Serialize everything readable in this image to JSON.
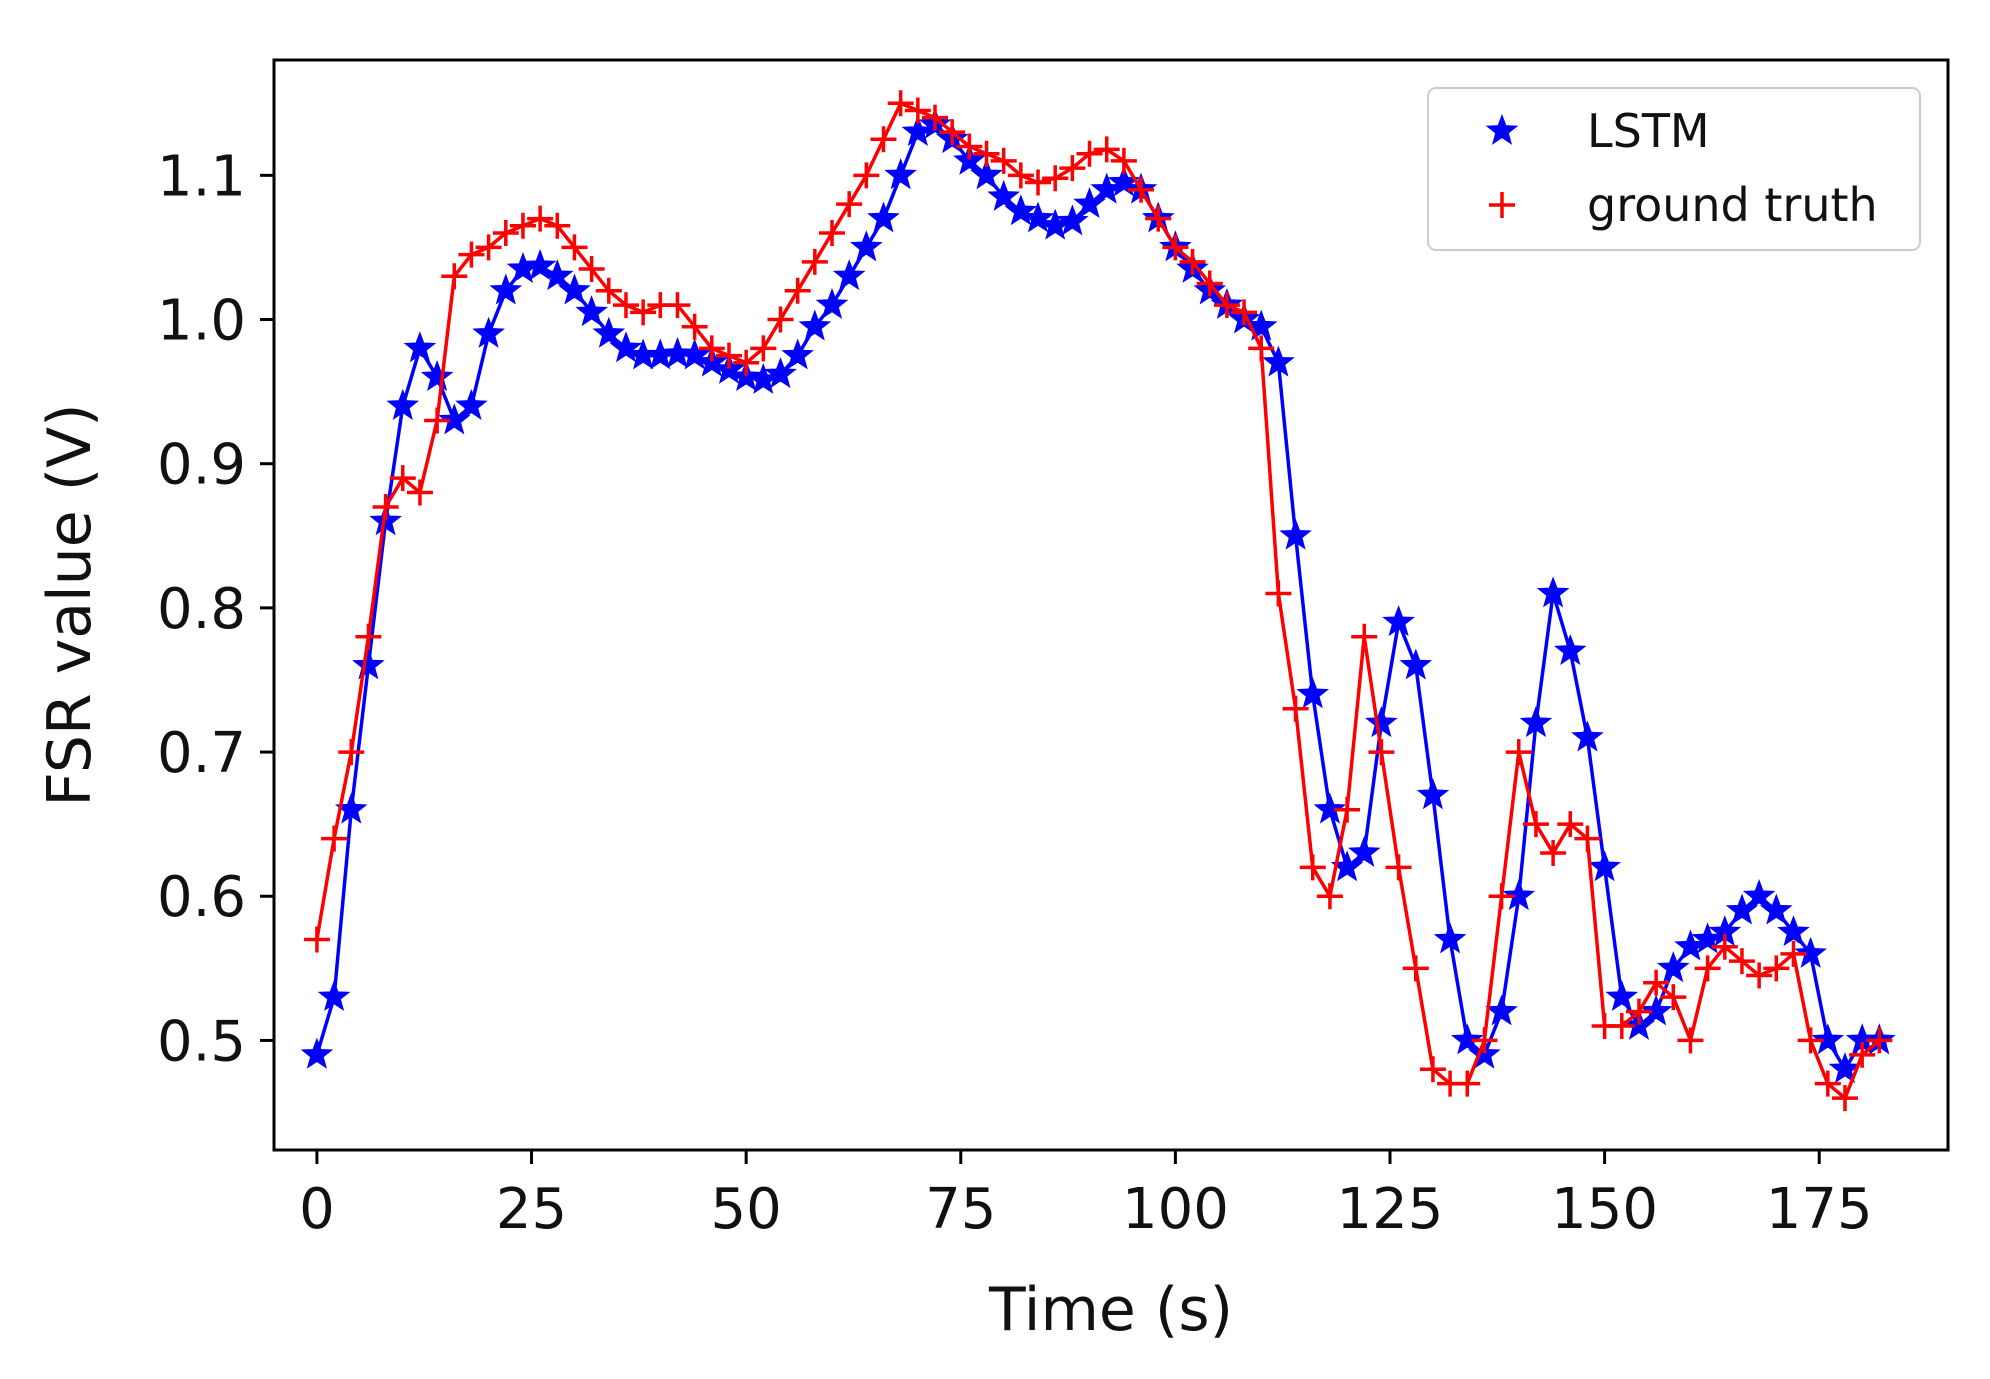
{
  "chart_data": {
    "type": "line",
    "title": "",
    "xlabel": "Time (s)",
    "ylabel": "FSR value (V)",
    "xlim": [
      -5,
      190
    ],
    "ylim": [
      0.424,
      1.18
    ],
    "xticks": [
      0,
      25,
      50,
      75,
      100,
      125,
      150,
      175
    ],
    "xtick_labels": [
      "0",
      "25",
      "50",
      "75",
      "100",
      "125",
      "150",
      "175"
    ],
    "yticks": [
      0.5,
      0.6,
      0.7,
      0.8,
      0.9,
      1.0,
      1.1
    ],
    "ytick_labels": [
      "0.5",
      "0.6",
      "0.7",
      "0.8",
      "0.9",
      "1.0",
      "1.1"
    ],
    "grid": false,
    "legend_position": "top-right",
    "series": [
      {
        "name": "LSTM",
        "color": "#0000ff",
        "marker": "star",
        "x": [
          0,
          2,
          4,
          6,
          8,
          10,
          12,
          14,
          16,
          18,
          20,
          22,
          24,
          26,
          28,
          30,
          32,
          34,
          36,
          38,
          40,
          42,
          44,
          46,
          48,
          50,
          52,
          54,
          56,
          58,
          60,
          62,
          64,
          66,
          68,
          70,
          72,
          74,
          76,
          78,
          80,
          82,
          84,
          86,
          88,
          90,
          92,
          94,
          96,
          98,
          100,
          102,
          104,
          106,
          108,
          110,
          112,
          114,
          116,
          118,
          120,
          122,
          124,
          126,
          128,
          130,
          132,
          134,
          136,
          138,
          140,
          142,
          144,
          146,
          148,
          150,
          152,
          154,
          156,
          158,
          160,
          162,
          164,
          166,
          168,
          170,
          172,
          174,
          176,
          178,
          180,
          182
        ],
        "y": [
          0.49,
          0.53,
          0.66,
          0.76,
          0.86,
          0.94,
          0.98,
          0.96,
          0.93,
          0.94,
          0.99,
          1.02,
          1.035,
          1.037,
          1.03,
          1.02,
          1.005,
          0.99,
          0.98,
          0.975,
          0.975,
          0.976,
          0.975,
          0.97,
          0.965,
          0.96,
          0.958,
          0.962,
          0.975,
          0.995,
          1.01,
          1.03,
          1.05,
          1.07,
          1.1,
          1.13,
          1.135,
          1.125,
          1.11,
          1.1,
          1.085,
          1.075,
          1.07,
          1.065,
          1.068,
          1.08,
          1.09,
          1.095,
          1.09,
          1.07,
          1.05,
          1.035,
          1.02,
          1.01,
          1.0,
          0.995,
          0.97,
          0.85,
          0.74,
          0.66,
          0.62,
          0.63,
          0.72,
          0.79,
          0.76,
          0.67,
          0.57,
          0.5,
          0.49,
          0.52,
          0.6,
          0.72,
          0.81,
          0.77,
          0.71,
          0.62,
          0.53,
          0.51,
          0.52,
          0.55,
          0.565,
          0.57,
          0.575,
          0.59,
          0.6,
          0.59,
          0.575,
          0.56,
          0.5,
          0.48,
          0.5,
          0.5
        ]
      },
      {
        "name": "ground truth",
        "color": "#ff0000",
        "marker": "plus",
        "x": [
          0,
          2,
          4,
          6,
          8,
          10,
          12,
          14,
          16,
          18,
          20,
          22,
          24,
          26,
          28,
          30,
          32,
          34,
          36,
          38,
          40,
          42,
          44,
          46,
          48,
          50,
          52,
          54,
          56,
          58,
          60,
          62,
          64,
          66,
          68,
          70,
          72,
          74,
          76,
          78,
          80,
          82,
          84,
          86,
          88,
          90,
          92,
          94,
          96,
          98,
          100,
          102,
          104,
          106,
          108,
          110,
          112,
          114,
          116,
          118,
          120,
          122,
          124,
          126,
          128,
          130,
          132,
          134,
          136,
          138,
          140,
          142,
          144,
          146,
          148,
          150,
          152,
          154,
          156,
          158,
          160,
          162,
          164,
          166,
          168,
          170,
          172,
          174,
          176,
          178,
          180,
          182
        ],
        "y": [
          0.57,
          0.64,
          0.7,
          0.78,
          0.87,
          0.89,
          0.88,
          0.93,
          1.03,
          1.045,
          1.05,
          1.06,
          1.065,
          1.07,
          1.065,
          1.05,
          1.035,
          1.02,
          1.01,
          1.005,
          1.01,
          1.01,
          0.995,
          0.98,
          0.975,
          0.97,
          0.98,
          1.0,
          1.02,
          1.04,
          1.06,
          1.08,
          1.1,
          1.125,
          1.15,
          1.145,
          1.14,
          1.13,
          1.12,
          1.115,
          1.11,
          1.1,
          1.095,
          1.098,
          1.105,
          1.115,
          1.118,
          1.11,
          1.09,
          1.07,
          1.05,
          1.04,
          1.025,
          1.01,
          1.005,
          0.98,
          0.81,
          0.73,
          0.62,
          0.6,
          0.66,
          0.78,
          0.7,
          0.62,
          0.55,
          0.48,
          0.47,
          0.47,
          0.5,
          0.6,
          0.7,
          0.65,
          0.63,
          0.65,
          0.64,
          0.51,
          0.51,
          0.52,
          0.54,
          0.53,
          0.5,
          0.55,
          0.565,
          0.555,
          0.545,
          0.55,
          0.56,
          0.5,
          0.47,
          0.46,
          0.49,
          0.5
        ]
      }
    ]
  }
}
